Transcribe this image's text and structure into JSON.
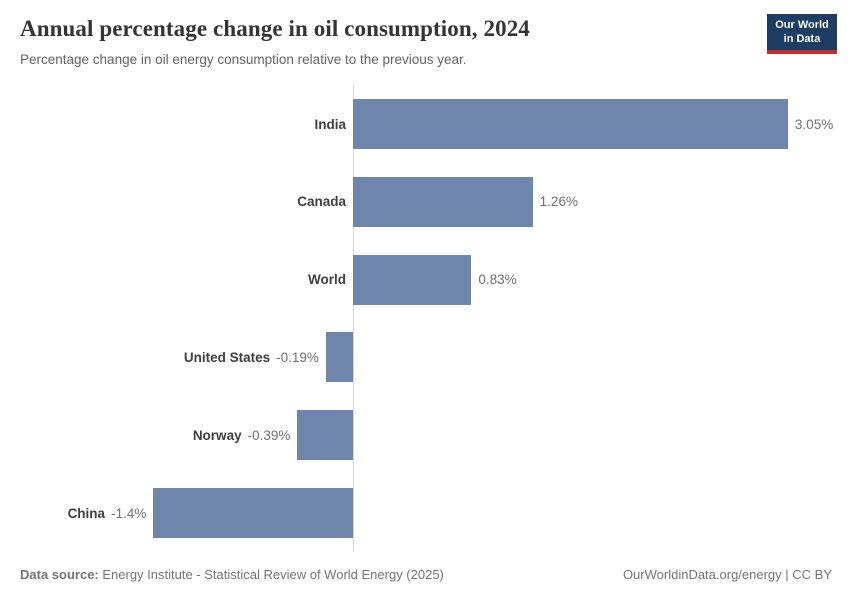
{
  "header": {
    "title": "Annual percentage change in oil consumption, 2024",
    "subtitle": "Percentage change in oil energy consumption relative to the previous year.",
    "logo": {
      "line1": "Our World",
      "line2": "in Data"
    }
  },
  "chart_data": {
    "type": "bar",
    "orientation": "horizontal",
    "title": "Annual percentage change in oil consumption, 2024",
    "categories": [
      "India",
      "Canada",
      "World",
      "United States",
      "Norway",
      "China"
    ],
    "values": [
      3.05,
      1.26,
      0.83,
      -0.19,
      -0.39,
      -1.4
    ],
    "value_labels": [
      "3.05%",
      "1.26%",
      "0.83%",
      "-0.19%",
      "-0.39%",
      "-1.4%"
    ],
    "xlabel": "",
    "ylabel": "",
    "xlim": [
      -1.4,
      3.05
    ],
    "grid": false,
    "legend": false,
    "bar_color": "#6e85ac",
    "axis_color": "#d6d6d6"
  },
  "footer": {
    "data_source_label": "Data source:",
    "data_source_value": " Energy Institute - Statistical Review of World Energy (2025)",
    "credit": "OurWorldinData.org/energy | CC BY"
  }
}
